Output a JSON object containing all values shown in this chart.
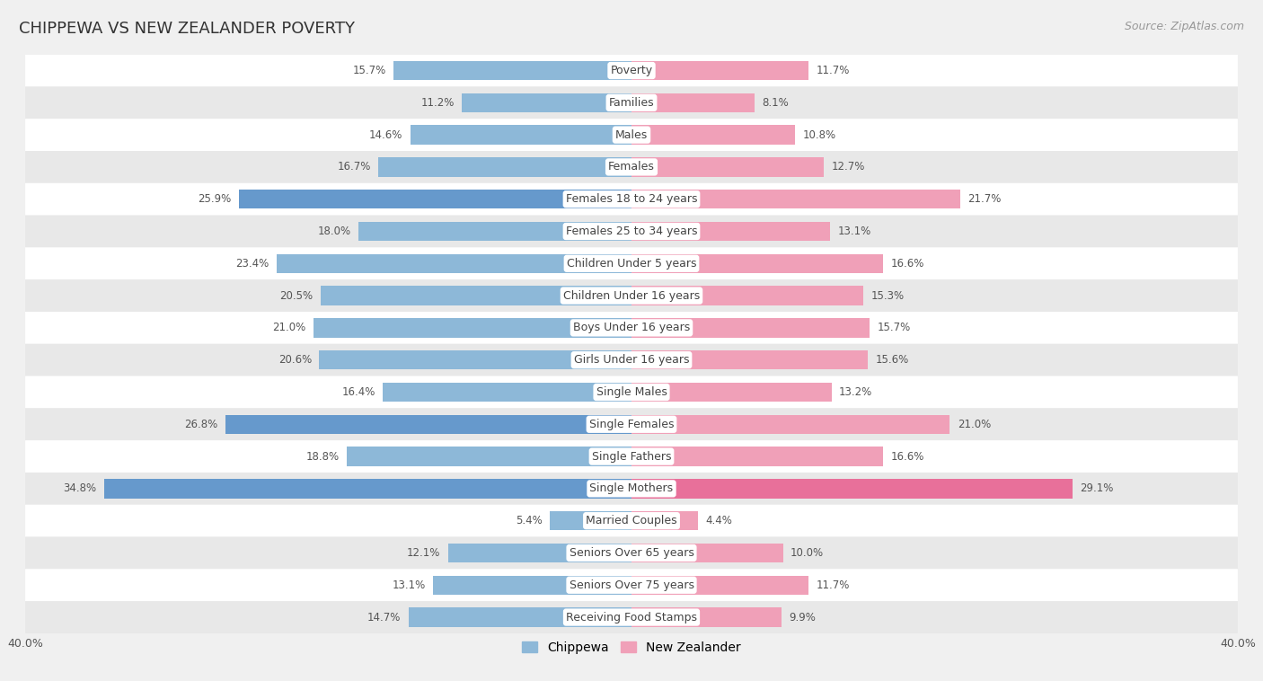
{
  "title": "CHIPPEWA VS NEW ZEALANDER POVERTY",
  "source": "Source: ZipAtlas.com",
  "categories": [
    "Poverty",
    "Families",
    "Males",
    "Females",
    "Females 18 to 24 years",
    "Females 25 to 34 years",
    "Children Under 5 years",
    "Children Under 16 years",
    "Boys Under 16 years",
    "Girls Under 16 years",
    "Single Males",
    "Single Females",
    "Single Fathers",
    "Single Mothers",
    "Married Couples",
    "Seniors Over 65 years",
    "Seniors Over 75 years",
    "Receiving Food Stamps"
  ],
  "chippewa": [
    15.7,
    11.2,
    14.6,
    16.7,
    25.9,
    18.0,
    23.4,
    20.5,
    21.0,
    20.6,
    16.4,
    26.8,
    18.8,
    34.8,
    5.4,
    12.1,
    13.1,
    14.7
  ],
  "new_zealander": [
    11.7,
    8.1,
    10.8,
    12.7,
    21.7,
    13.1,
    16.6,
    15.3,
    15.7,
    15.6,
    13.2,
    21.0,
    16.6,
    29.1,
    4.4,
    10.0,
    11.7,
    9.9
  ],
  "chippewa_color": "#8db8d8",
  "chippewa_highlight_color": "#6699cc",
  "new_zealander_color": "#f0a0b8",
  "new_zealander_highlight_color": "#e8709a",
  "highlight_threshold": 25.0,
  "x_max": 40.0,
  "bar_height": 0.6,
  "background_color": "#f0f0f0",
  "row_color_light": "#ffffff",
  "row_color_dark": "#e8e8e8",
  "label_bg_color": "#ffffff",
  "label_text_color": "#444444",
  "value_text_color": "#555555",
  "legend_chippewa": "Chippewa",
  "legend_new_zealander": "New Zealander"
}
